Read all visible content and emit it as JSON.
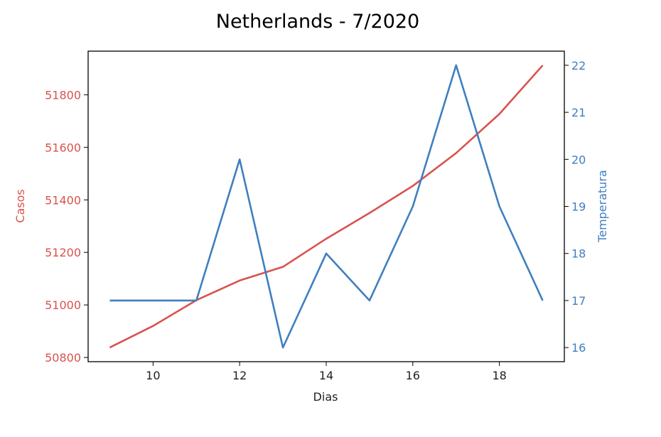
{
  "chart_data": {
    "type": "line",
    "title": "Netherlands - 7/2020",
    "xlabel": "Dias",
    "ylabel_left": "Casos",
    "ylabel_right": "Temperatura",
    "x": [
      9,
      10,
      11,
      12,
      13,
      14,
      15,
      16,
      17,
      18,
      19
    ],
    "xlim": [
      8.5,
      19.5
    ],
    "xticks": [
      10,
      12,
      14,
      16,
      18
    ],
    "grid": false,
    "series": [
      {
        "axis": "left",
        "color": "#d9534f",
        "values": [
          50838,
          50920,
          51018,
          51093,
          51145,
          51252,
          51350,
          51453,
          51578,
          51727,
          51912
        ]
      },
      {
        "axis": "right",
        "color": "#3f7fbf",
        "values": [
          17,
          17,
          17,
          20,
          16,
          18,
          17,
          19,
          22,
          19,
          17
        ]
      }
    ],
    "left_axis": {
      "color": "#d9534f",
      "ylim": [
        50784,
        51966
      ],
      "ticks": [
        50800,
        51000,
        51200,
        51400,
        51600,
        51800
      ]
    },
    "right_axis": {
      "color": "#3f7fbf",
      "ylim": [
        15.7,
        22.3
      ],
      "ticks": [
        16,
        17,
        18,
        19,
        20,
        21,
        22
      ]
    }
  }
}
